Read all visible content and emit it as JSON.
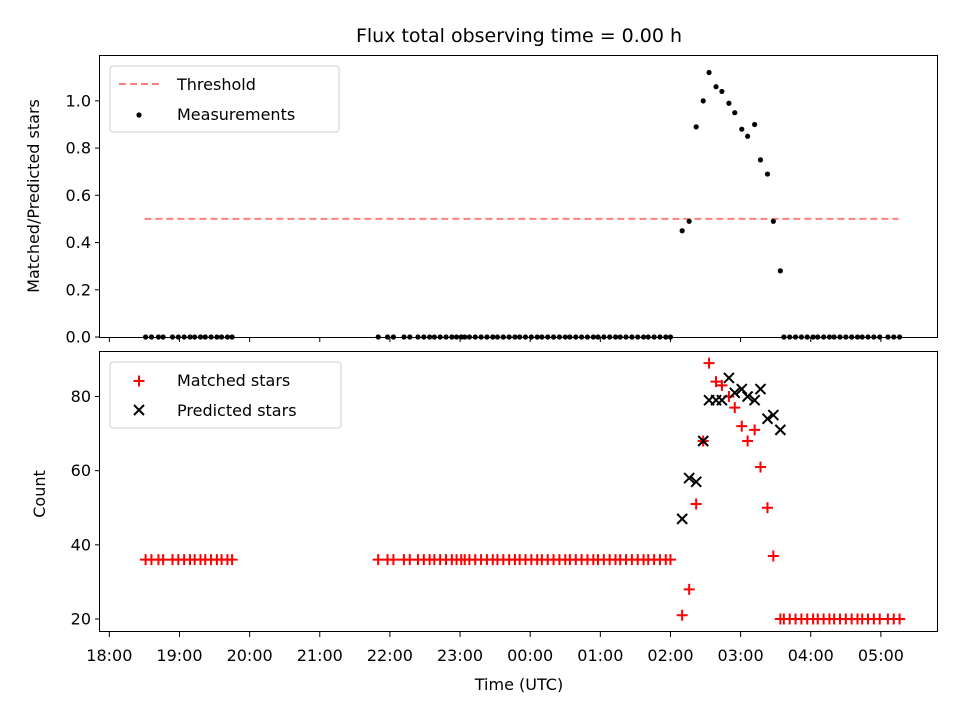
{
  "chart_data": [
    {
      "type": "scatter",
      "title": "Flux total observing time = 0.00 h",
      "xlabel": "",
      "ylabel": "Matched/Predicted stars",
      "xlim": [
        "17:52",
        "05:48"
      ],
      "ylim": [
        0,
        1.19
      ],
      "x_ticks": [
        "18:00",
        "19:00",
        "20:00",
        "21:00",
        "22:00",
        "23:00",
        "00:00",
        "01:00",
        "02:00",
        "03:00",
        "04:00",
        "05:00"
      ],
      "y_ticks": [
        "0.0",
        "0.2",
        "0.4",
        "0.6",
        "0.8",
        "1.0"
      ],
      "y_tick_values": [
        0,
        0.2,
        0.4,
        0.6,
        0.8,
        1.0
      ],
      "grid": false,
      "legend_position": "top-left",
      "legend": [
        "Threshold",
        "Measurements"
      ],
      "threshold": {
        "name": "Threshold",
        "value": 0.5,
        "x_range": [
          "18:30",
          "05:15"
        ],
        "color": "#ff7f7f"
      },
      "series": [
        {
          "name": "Measurements",
          "marker": "dot",
          "color": "#000000",
          "points": [
            [
              "18:31",
              0
            ],
            [
              "18:36",
              0
            ],
            [
              "18:42",
              0
            ],
            [
              "18:46",
              0
            ],
            [
              "18:54",
              0
            ],
            [
              "18:59",
              0
            ],
            [
              "19:04",
              0
            ],
            [
              "19:09",
              0
            ],
            [
              "19:13",
              0
            ],
            [
              "19:18",
              0
            ],
            [
              "19:22",
              0
            ],
            [
              "19:27",
              0
            ],
            [
              "19:32",
              0
            ],
            [
              "19:36",
              0
            ],
            [
              "19:41",
              0
            ],
            [
              "19:45",
              0
            ],
            [
              "21:50",
              0
            ],
            [
              "21:58",
              0
            ],
            [
              "22:03",
              0
            ],
            [
              "22:12",
              0
            ],
            [
              "22:17",
              0
            ],
            [
              "22:24",
              0
            ],
            [
              "22:29",
              0
            ],
            [
              "22:34",
              0
            ],
            [
              "22:38",
              0
            ],
            [
              "22:43",
              0
            ],
            [
              "22:48",
              0
            ],
            [
              "22:53",
              0
            ],
            [
              "22:57",
              0
            ],
            [
              "23:01",
              0
            ],
            [
              "23:04",
              0
            ],
            [
              "23:08",
              0
            ],
            [
              "23:13",
              0
            ],
            [
              "23:18",
              0
            ],
            [
              "23:23",
              0
            ],
            [
              "23:28",
              0
            ],
            [
              "23:32",
              0
            ],
            [
              "23:37",
              0
            ],
            [
              "23:42",
              0
            ],
            [
              "23:47",
              0
            ],
            [
              "23:51",
              0
            ],
            [
              "23:56",
              0
            ],
            [
              "00:01",
              0
            ],
            [
              "00:06",
              0
            ],
            [
              "00:10",
              0
            ],
            [
              "00:15",
              0
            ],
            [
              "00:20",
              0
            ],
            [
              "00:25",
              0
            ],
            [
              "00:30",
              0
            ],
            [
              "00:34",
              0
            ],
            [
              "00:39",
              0
            ],
            [
              "00:44",
              0
            ],
            [
              "00:49",
              0
            ],
            [
              "00:54",
              0
            ],
            [
              "00:58",
              0
            ],
            [
              "01:03",
              0
            ],
            [
              "01:08",
              0
            ],
            [
              "01:13",
              0
            ],
            [
              "01:17",
              0
            ],
            [
              "01:22",
              0
            ],
            [
              "01:27",
              0
            ],
            [
              "01:32",
              0
            ],
            [
              "01:37",
              0
            ],
            [
              "01:41",
              0
            ],
            [
              "01:46",
              0
            ],
            [
              "01:51",
              0
            ],
            [
              "01:56",
              0
            ],
            [
              "02:00",
              0
            ],
            [
              "02:10",
              0.45
            ],
            [
              "02:16",
              0.49
            ],
            [
              "02:22",
              0.89
            ],
            [
              "02:28",
              1.0
            ],
            [
              "02:33",
              1.12
            ],
            [
              "02:39",
              1.06
            ],
            [
              "02:44",
              1.04
            ],
            [
              "02:50",
              0.99
            ],
            [
              "02:55",
              0.95
            ],
            [
              "03:01",
              0.88
            ],
            [
              "03:06",
              0.85
            ],
            [
              "03:12",
              0.9
            ],
            [
              "03:17",
              0.75
            ],
            [
              "03:23",
              0.69
            ],
            [
              "03:28",
              0.49
            ],
            [
              "03:34",
              0.28
            ],
            [
              "03:37",
              0
            ],
            [
              "03:42",
              0
            ],
            [
              "03:47",
              0
            ],
            [
              "03:52",
              0
            ],
            [
              "03:57",
              0
            ],
            [
              "04:02",
              0
            ],
            [
              "04:06",
              0
            ],
            [
              "04:11",
              0
            ],
            [
              "04:16",
              0
            ],
            [
              "04:20",
              0
            ],
            [
              "04:25",
              0
            ],
            [
              "04:30",
              0
            ],
            [
              "04:35",
              0
            ],
            [
              "04:40",
              0
            ],
            [
              "04:44",
              0
            ],
            [
              "04:49",
              0
            ],
            [
              "04:54",
              0
            ],
            [
              "04:59",
              0
            ],
            [
              "05:06",
              0
            ],
            [
              "05:11",
              0
            ],
            [
              "05:16",
              0
            ]
          ]
        }
      ]
    },
    {
      "type": "scatter",
      "title": "",
      "xlabel": "Time (UTC)",
      "ylabel": "Count",
      "xlim": [
        "17:52",
        "05:48"
      ],
      "ylim": [
        16.5,
        92
      ],
      "x_ticks": [
        "18:00",
        "19:00",
        "20:00",
        "21:00",
        "22:00",
        "23:00",
        "00:00",
        "01:00",
        "02:00",
        "03:00",
        "04:00",
        "05:00"
      ],
      "y_ticks": [
        "20",
        "40",
        "60",
        "80"
      ],
      "y_tick_values": [
        20,
        40,
        60,
        80
      ],
      "grid": false,
      "legend_position": "top-left",
      "legend": [
        "Matched stars",
        "Predicted stars"
      ],
      "series": [
        {
          "name": "Matched stars",
          "marker": "plus",
          "color": "#ff0000",
          "points": [
            [
              "18:31",
              36
            ],
            [
              "18:36",
              36
            ],
            [
              "18:42",
              36
            ],
            [
              "18:46",
              36
            ],
            [
              "18:54",
              36
            ],
            [
              "18:59",
              36
            ],
            [
              "19:04",
              36
            ],
            [
              "19:09",
              36
            ],
            [
              "19:13",
              36
            ],
            [
              "19:18",
              36
            ],
            [
              "19:22",
              36
            ],
            [
              "19:27",
              36
            ],
            [
              "19:32",
              36
            ],
            [
              "19:36",
              36
            ],
            [
              "19:41",
              36
            ],
            [
              "19:45",
              36
            ],
            [
              "21:50",
              36
            ],
            [
              "21:58",
              36
            ],
            [
              "22:03",
              36
            ],
            [
              "22:12",
              36
            ],
            [
              "22:17",
              36
            ],
            [
              "22:24",
              36
            ],
            [
              "22:29",
              36
            ],
            [
              "22:34",
              36
            ],
            [
              "22:38",
              36
            ],
            [
              "22:43",
              36
            ],
            [
              "22:48",
              36
            ],
            [
              "22:53",
              36
            ],
            [
              "22:57",
              36
            ],
            [
              "23:01",
              36
            ],
            [
              "23:04",
              36
            ],
            [
              "23:08",
              36
            ],
            [
              "23:13",
              36
            ],
            [
              "23:18",
              36
            ],
            [
              "23:23",
              36
            ],
            [
              "23:28",
              36
            ],
            [
              "23:32",
              36
            ],
            [
              "23:37",
              36
            ],
            [
              "23:42",
              36
            ],
            [
              "23:47",
              36
            ],
            [
              "23:51",
              36
            ],
            [
              "23:56",
              36
            ],
            [
              "00:01",
              36
            ],
            [
              "00:06",
              36
            ],
            [
              "00:10",
              36
            ],
            [
              "00:15",
              36
            ],
            [
              "00:20",
              36
            ],
            [
              "00:25",
              36
            ],
            [
              "00:30",
              36
            ],
            [
              "00:34",
              36
            ],
            [
              "00:39",
              36
            ],
            [
              "00:44",
              36
            ],
            [
              "00:49",
              36
            ],
            [
              "00:54",
              36
            ],
            [
              "00:58",
              36
            ],
            [
              "01:03",
              36
            ],
            [
              "01:08",
              36
            ],
            [
              "01:13",
              36
            ],
            [
              "01:17",
              36
            ],
            [
              "01:22",
              36
            ],
            [
              "01:27",
              36
            ],
            [
              "01:32",
              36
            ],
            [
              "01:37",
              36
            ],
            [
              "01:41",
              36
            ],
            [
              "01:46",
              36
            ],
            [
              "01:51",
              36
            ],
            [
              "01:56",
              36
            ],
            [
              "02:00",
              36
            ],
            [
              "02:10",
              21
            ],
            [
              "02:16",
              28
            ],
            [
              "02:22",
              51
            ],
            [
              "02:28",
              68
            ],
            [
              "02:33",
              89
            ],
            [
              "02:39",
              84
            ],
            [
              "02:44",
              83
            ],
            [
              "02:50",
              80
            ],
            [
              "02:55",
              77
            ],
            [
              "03:01",
              72
            ],
            [
              "03:06",
              68
            ],
            [
              "03:12",
              71
            ],
            [
              "03:17",
              61
            ],
            [
              "03:23",
              50
            ],
            [
              "03:28",
              37
            ],
            [
              "03:34",
              20
            ],
            [
              "03:37",
              20
            ],
            [
              "03:42",
              20
            ],
            [
              "03:47",
              20
            ],
            [
              "03:52",
              20
            ],
            [
              "03:57",
              20
            ],
            [
              "04:02",
              20
            ],
            [
              "04:06",
              20
            ],
            [
              "04:11",
              20
            ],
            [
              "04:16",
              20
            ],
            [
              "04:20",
              20
            ],
            [
              "04:25",
              20
            ],
            [
              "04:30",
              20
            ],
            [
              "04:35",
              20
            ],
            [
              "04:40",
              20
            ],
            [
              "04:44",
              20
            ],
            [
              "04:49",
              20
            ],
            [
              "04:54",
              20
            ],
            [
              "04:59",
              20
            ],
            [
              "05:06",
              20
            ],
            [
              "05:11",
              20
            ],
            [
              "05:16",
              20
            ]
          ]
        },
        {
          "name": "Predicted stars",
          "marker": "x",
          "color": "#000000",
          "points": [
            [
              "02:10",
              47
            ],
            [
              "02:16",
              58
            ],
            [
              "02:22",
              57
            ],
            [
              "02:28",
              68
            ],
            [
              "02:33",
              79
            ],
            [
              "02:39",
              79
            ],
            [
              "02:44",
              79
            ],
            [
              "02:50",
              85
            ],
            [
              "02:55",
              81
            ],
            [
              "03:01",
              82
            ],
            [
              "03:06",
              80
            ],
            [
              "03:12",
              79
            ],
            [
              "03:17",
              82
            ],
            [
              "03:23",
              74
            ],
            [
              "03:28",
              75
            ],
            [
              "03:34",
              71
            ]
          ]
        }
      ]
    }
  ]
}
